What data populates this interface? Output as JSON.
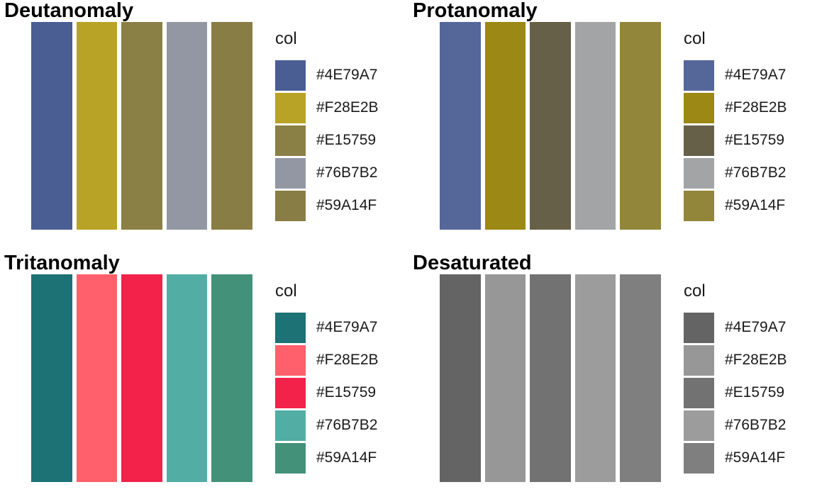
{
  "chart_data": [
    {
      "type": "bar",
      "title": "Deutanomaly",
      "legend_title": "col",
      "legend_position": "right",
      "grid": false,
      "categories": [
        "#4E79A7",
        "#F28E2B",
        "#E15759",
        "#76B7B2",
        "#59A14F"
      ],
      "values": [
        1,
        1,
        1,
        1,
        1
      ],
      "colors": [
        "#4A5E94",
        "#B8A326",
        "#8A7F44",
        "#9297A3",
        "#877D45"
      ]
    },
    {
      "type": "bar",
      "title": "Protanomaly",
      "legend_title": "col",
      "legend_position": "right",
      "grid": false,
      "categories": [
        "#4E79A7",
        "#F28E2B",
        "#E15759",
        "#76B7B2",
        "#59A14F"
      ],
      "values": [
        1,
        1,
        1,
        1,
        1
      ],
      "colors": [
        "#556699",
        "#9C8814",
        "#676048",
        "#A3A4A6",
        "#92863A"
      ]
    },
    {
      "type": "bar",
      "title": "Tritanomaly",
      "legend_title": "col",
      "legend_position": "right",
      "grid": false,
      "categories": [
        "#4E79A7",
        "#F28E2B",
        "#E15759",
        "#76B7B2",
        "#59A14F"
      ],
      "values": [
        1,
        1,
        1,
        1,
        1
      ],
      "colors": [
        "#1C7275",
        "#FF606B",
        "#F2224B",
        "#52ADA5",
        "#44917A"
      ]
    },
    {
      "type": "bar",
      "title": "Desaturated",
      "legend_title": "col",
      "legend_position": "right",
      "grid": false,
      "categories": [
        "#4E79A7",
        "#F28E2B",
        "#E15759",
        "#76B7B2",
        "#59A14F"
      ],
      "values": [
        1,
        1,
        1,
        1,
        1
      ],
      "colors": [
        "#646464",
        "#979797",
        "#727272",
        "#9C9C9C",
        "#7F7F7F"
      ]
    }
  ]
}
